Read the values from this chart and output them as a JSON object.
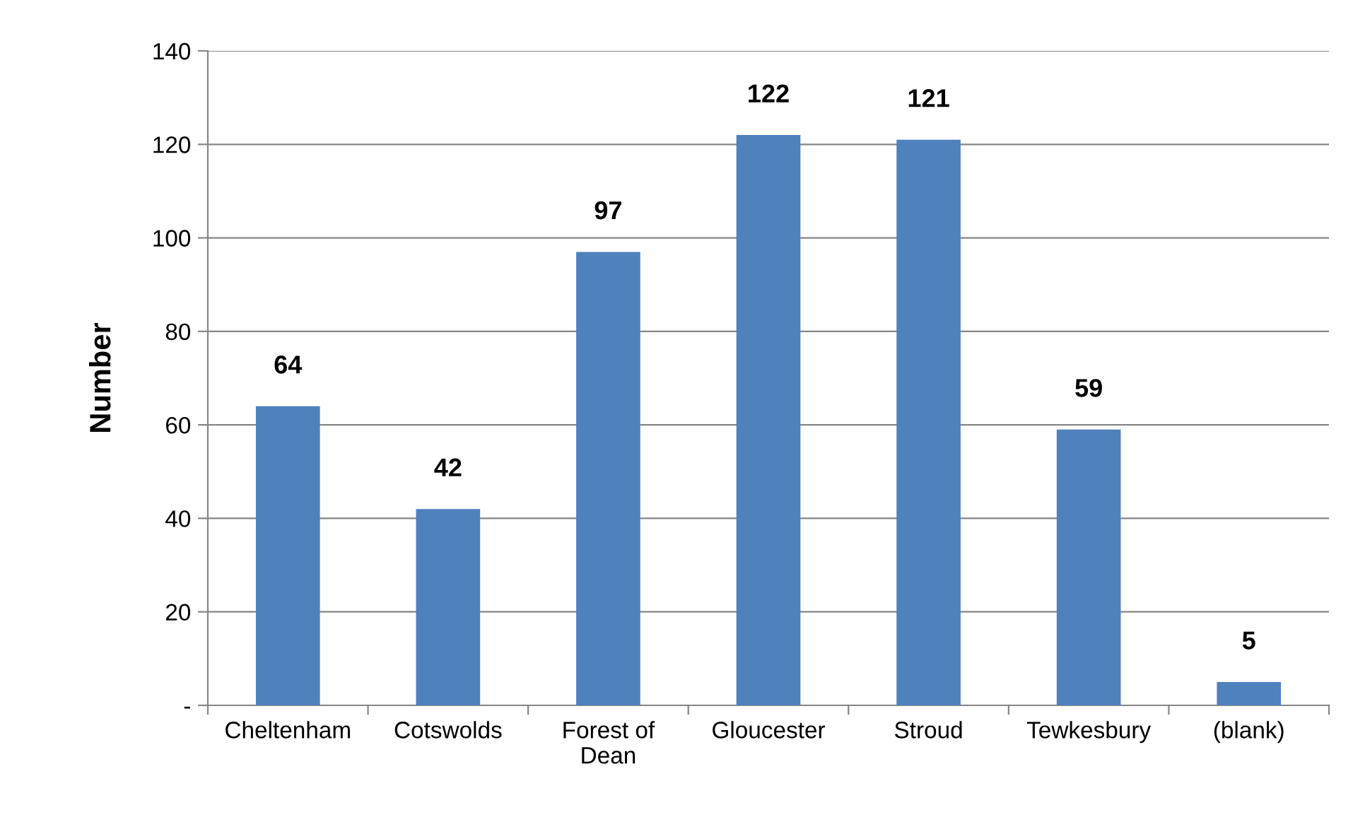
{
  "chart_data": {
    "type": "bar",
    "ylabel": "Number",
    "categories": [
      "Cheltenham",
      "Cotswolds",
      "Forest of\nDean",
      "Gloucester",
      "Stroud",
      "Tewkesbury",
      "(blank)"
    ],
    "values": [
      64,
      42,
      97,
      122,
      121,
      59,
      5
    ],
    "color": "#4f81bd",
    "ylim": [
      0,
      140
    ],
    "yticks": [
      {
        "value": 0,
        "label": "-"
      },
      20,
      40,
      60,
      80,
      100,
      120,
      140
    ],
    "grid": "y",
    "data_labels": true
  }
}
